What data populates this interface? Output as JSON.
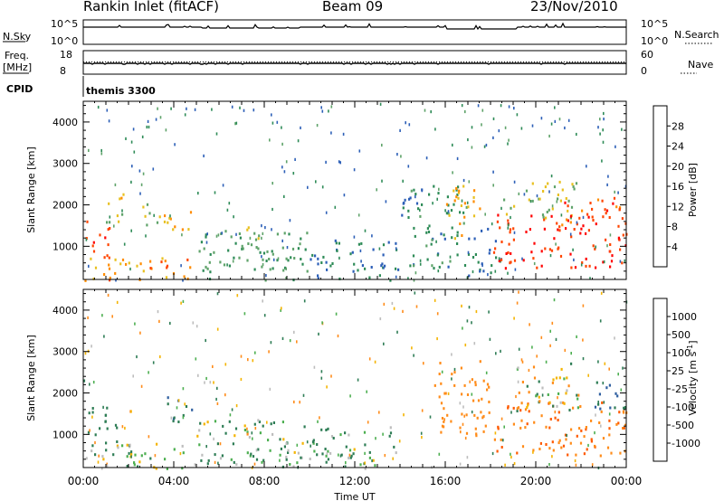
{
  "header": {
    "title": "Rankin Inlet (fitACF)",
    "beam": "Beam 09",
    "date": "23/Nov/2010"
  },
  "info_panel": {
    "left_labels": [
      "N.Sky",
      "Freq.",
      "[MHz]",
      "CPID"
    ],
    "right_labels": [
      "N.Search",
      "Nave"
    ],
    "nsky_ticks": [
      "10^5",
      "10^0"
    ],
    "freq_ticks": [
      "18",
      "8"
    ],
    "right_ticks_top": [
      "10^5",
      "10^0"
    ],
    "right_ticks_freq": [
      "60",
      "0"
    ],
    "cpid_text": "themis 3300"
  },
  "colors": {
    "power_scale": [
      "#1f1fff",
      "#2c5fb7",
      "#2e8b57",
      "#5fa36a",
      "#e8c020",
      "#ff8c00",
      "#ff4500",
      "#ff0000"
    ],
    "velocity_scale": [
      "#2040c0",
      "#2f5fa0",
      "#2e7d55",
      "#4caf50",
      "#bdbdbd",
      "#f4b400",
      "#ff8c1a",
      "#ff5a00",
      "#ff0000"
    ]
  },
  "chart_data": [
    {
      "type": "heatmap",
      "title": "",
      "xlabel": "",
      "ylabel": "Slant Range [km]",
      "colorbar_label": "Power [dB]",
      "colorbar_ticks": [
        "28",
        "24",
        "20",
        "16",
        "12",
        "8",
        "4"
      ],
      "xlim": [
        0,
        24
      ],
      "ylim": [
        200,
        4500
      ],
      "yticks": [
        "1000",
        "2000",
        "3000",
        "4000"
      ],
      "echo_regions": [
        {
          "t": [
            0.0,
            1.2
          ],
          "range": [
            700,
            1700
          ],
          "power_db": 26
        },
        {
          "t": [
            0.0,
            5.0
          ],
          "range": [
            200,
            800
          ],
          "power_db": 22
        },
        {
          "t": [
            1.0,
            2.0
          ],
          "range": [
            1600,
            2400
          ],
          "power_db": 18
        },
        {
          "t": [
            2.5,
            3.5
          ],
          "range": [
            1500,
            2100
          ],
          "power_db": 16
        },
        {
          "t": [
            3.5,
            4.8
          ],
          "range": [
            1300,
            2000
          ],
          "power_db": 20
        },
        {
          "t": [
            5.0,
            10.0
          ],
          "range": [
            200,
            1400
          ],
          "power_db": 12
        },
        {
          "t": [
            6.5,
            7.8
          ],
          "range": [
            1000,
            1500
          ],
          "power_db": 18
        },
        {
          "t": [
            10.0,
            14.0
          ],
          "range": [
            200,
            1200
          ],
          "power_db": 8
        },
        {
          "t": [
            14.0,
            17.0
          ],
          "range": [
            500,
            2500
          ],
          "power_db": 10
        },
        {
          "t": [
            16.0,
            17.5
          ],
          "range": [
            1200,
            2500
          ],
          "power_db": 20
        },
        {
          "t": [
            17.0,
            18.5
          ],
          "range": [
            300,
            1500
          ],
          "power_db": 8
        },
        {
          "t": [
            18.0,
            24.0
          ],
          "range": [
            500,
            1800
          ],
          "power_db": 28
        },
        {
          "t": [
            18.5,
            22.0
          ],
          "range": [
            1700,
            2600
          ],
          "power_db": 16
        },
        {
          "t": [
            21.0,
            24.0
          ],
          "range": [
            1400,
            2200
          ],
          "power_db": 26
        }
      ]
    },
    {
      "type": "heatmap",
      "title": "",
      "xlabel": "Time UT",
      "ylabel": "Slant Range [km]",
      "colorbar_label": "Velocity [m s^-1]",
      "colorbar_ticks": [
        "1000",
        "500",
        "100",
        "25",
        "-25",
        "-100",
        "-500",
        "-1000"
      ],
      "xlim": [
        0,
        24
      ],
      "xticks": [
        "00:00",
        "04:00",
        "08:00",
        "12:00",
        "16:00",
        "20:00",
        "00:00"
      ],
      "ylim": [
        200,
        4500
      ],
      "yticks": [
        "1000",
        "2000",
        "3000",
        "4000"
      ],
      "echo_regions": [
        {
          "t": [
            0.0,
            1.5
          ],
          "range": [
            600,
            1700
          ],
          "velocity": 300
        },
        {
          "t": [
            0.0,
            5.0
          ],
          "range": [
            200,
            800
          ],
          "velocity": 50
        },
        {
          "t": [
            1.5,
            2.5
          ],
          "range": [
            500,
            900
          ],
          "velocity": 0
        },
        {
          "t": [
            3.5,
            4.8
          ],
          "range": [
            1300,
            2000
          ],
          "velocity": 500
        },
        {
          "t": [
            5.0,
            10.0
          ],
          "range": [
            200,
            1400
          ],
          "velocity": 100
        },
        {
          "t": [
            6.5,
            7.5
          ],
          "range": [
            900,
            1300
          ],
          "velocity": 0
        },
        {
          "t": [
            10.0,
            14.0
          ],
          "range": [
            200,
            1200
          ],
          "velocity": 100
        },
        {
          "t": [
            15.5,
            18.0
          ],
          "range": [
            1000,
            2800
          ],
          "velocity": -300
        },
        {
          "t": [
            18.0,
            24.0
          ],
          "range": [
            500,
            1800
          ],
          "velocity": -500
        },
        {
          "t": [
            19.0,
            22.0
          ],
          "range": [
            1500,
            2800
          ],
          "velocity": 0
        },
        {
          "t": [
            22.5,
            24.0
          ],
          "range": [
            1600,
            2300
          ],
          "velocity": 500
        }
      ]
    }
  ]
}
